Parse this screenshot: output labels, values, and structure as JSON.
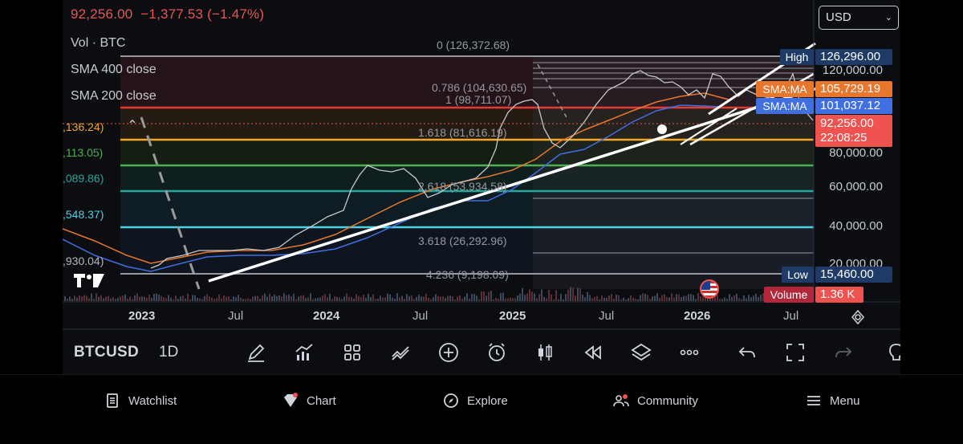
{
  "quote": {
    "last": "92,256.00",
    "change": "−1,377.53",
    "change_pct": "(−1.47%)"
  },
  "legend": {
    "vol": "Vol · BTC",
    "sma400": "SMA 400 close",
    "sma200": "SMA 200 close",
    "collapse_glyph": "⌃"
  },
  "currency": {
    "value": "USD",
    "chevron": "⌄"
  },
  "price_axis": [
    "120,000.00",
    "80,000.00",
    "60,000.00",
    "40,000.00",
    "20,000.00"
  ],
  "tags": {
    "high_name": "High",
    "high_value": "126,296.00",
    "sma_a_name": "SMA:MA",
    "sma_a_value": "105,729.19",
    "sma_b_name": "SMA:MA",
    "sma_b_value": "101,037.12",
    "last_price": "92,256.00",
    "countdown": "22:08:25",
    "low_name": "Low",
    "low_value": "15,460.00",
    "volume_name": "Volume",
    "volume_value": "1.36 K"
  },
  "fib_labels": {
    "l0": "0 (126,372.68)",
    "l786": "0.786 (104,630.65)",
    "l1": "1 (98,711.07)",
    "l1618": "1.618 (81,616.19)",
    "l2618": "2.618 (53,934.58)",
    "l3618": "3.618 (26,292.96)",
    "l4236": "4.236 (9,198.09)"
  },
  "left_labels": {
    "a": ",113.05)",
    "b": ",089.86)",
    "c": ",548.37)",
    "d": ",930.04)",
    "e": ",136.24)"
  },
  "time_axis": [
    "2023",
    "Jul",
    "2024",
    "Jul",
    "2025",
    "Jul",
    "2026",
    "Jul"
  ],
  "toolbar": {
    "symbol": "BTCUSD",
    "interval": "1D"
  },
  "nav": {
    "watchlist": "Watchlist",
    "chart": "Chart",
    "explore": "Explore",
    "community": "Community",
    "menu": "Menu"
  },
  "colors": {
    "down": "#ef5350",
    "fib_red": "#e53935",
    "fib_orange": "#f5a623",
    "fib_green": "#4caf50",
    "fib_teal": "#26a69a",
    "fib_cyan": "#4dd0e1",
    "sma_orange": "#e8762c",
    "sma_blue": "#3f6fe0",
    "high_tag": "#1e3a66",
    "low_tag": "#1e3a66"
  },
  "icons": [
    "pencil-icon",
    "indicators-icon",
    "grid-icon",
    "drawing-icon",
    "plus-circle-icon",
    "alarm-icon",
    "candles-icon",
    "replay-icon",
    "layers-icon",
    "more-icon",
    "undo-icon",
    "fullscreen-icon",
    "redo-icon",
    "bulb-icon",
    "watchlist-icon",
    "chart-icon",
    "explore-icon",
    "community-icon",
    "menu-icon",
    "tradingview-logo-icon",
    "us-flag-icon"
  ]
}
